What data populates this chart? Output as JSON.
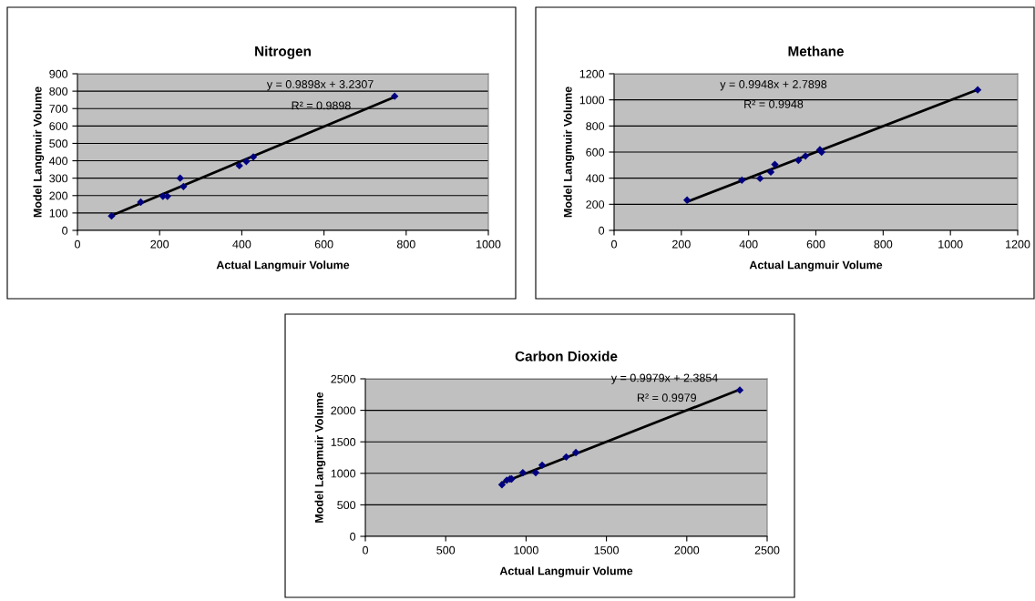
{
  "chart_data": [
    {
      "type": "scatter",
      "title": "Nitrogen",
      "xlabel": "Actual Langmuir Volume",
      "ylabel": "Model Langmuir Volume",
      "xlim": [
        0,
        1000
      ],
      "xticks": [
        0,
        200,
        400,
        600,
        800,
        1000
      ],
      "ylim": [
        0,
        900
      ],
      "yticks": [
        0,
        100,
        200,
        300,
        400,
        500,
        600,
        700,
        800,
        900
      ],
      "grid": "y",
      "series": [
        {
          "color": "#000080",
          "marker": "diamond",
          "x": [
            83,
            154,
            208,
            219,
            250,
            258,
            394,
            411,
            428,
            772
          ],
          "values": [
            83,
            162,
            196,
            196,
            300,
            252,
            372,
            396,
            422,
            771
          ]
        },
        {
          "type": "line",
          "color": "#000000",
          "x": [
            83,
            772
          ],
          "values": [
            85,
            767
          ]
        }
      ],
      "annotations": [
        "y = 0.9898x + 3.2307",
        "R² = 0.9898"
      ]
    },
    {
      "type": "scatter",
      "title": "Methane",
      "xlabel": "Actual Langmuir Volume",
      "ylabel": "Model Langmuir Volume",
      "xlim": [
        0,
        1200
      ],
      "xticks": [
        0,
        200,
        400,
        600,
        800,
        1000,
        1200
      ],
      "ylim": [
        0,
        1200
      ],
      "yticks": [
        0,
        200,
        400,
        600,
        800,
        1000,
        1200
      ],
      "grid": "y",
      "series": [
        {
          "color": "#000080",
          "marker": "diamond",
          "x": [
            217,
            380,
            434,
            466,
            478,
            548,
            569,
            612,
            617,
            1081
          ],
          "values": [
            232,
            385,
            398,
            447,
            505,
            537,
            570,
            618,
            600,
            1077
          ]
        },
        {
          "type": "line",
          "color": "#000000",
          "x": [
            217,
            1081
          ],
          "values": [
            219,
            1078
          ]
        }
      ],
      "annotations": [
        "y = 0.9948x + 2.7898",
        "R² = 0.9948"
      ]
    },
    {
      "type": "scatter",
      "title": "Carbon Dioxide",
      "xlabel": "Actual Langmuir Volume",
      "ylabel": "Model Langmuir Volume",
      "xlim": [
        0,
        2500
      ],
      "xticks": [
        0,
        500,
        1000,
        1500,
        2000,
        2500
      ],
      "ylim": [
        0,
        2500
      ],
      "yticks": [
        0,
        500,
        1000,
        1500,
        2000,
        2500
      ],
      "grid": "y",
      "series": [
        {
          "color": "#000080",
          "marker": "diamond",
          "x": [
            850,
            880,
            900,
            910,
            980,
            1060,
            1100,
            1250,
            1310,
            2330
          ],
          "values": [
            820,
            890,
            910,
            910,
            1010,
            1010,
            1130,
            1260,
            1330,
            2320
          ]
        },
        {
          "type": "line",
          "color": "#000000",
          "x": [
            850,
            2330
          ],
          "values": [
            850,
            2330
          ]
        }
      ],
      "annotations": [
        "y = 0.9979x + 2.3854",
        "R² = 0.9979"
      ]
    }
  ]
}
